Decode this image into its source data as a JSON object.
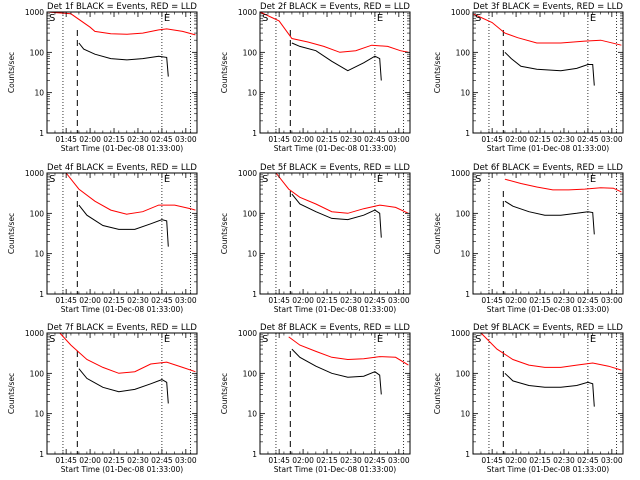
{
  "figure": {
    "xlabel": "Start Time (01-Dec-08 01:33:00)",
    "ylabel": "Counts/sec",
    "x_ticks": [
      "01:45",
      "02:00",
      "02:15",
      "02:30",
      "02:45",
      "03:00"
    ],
    "y_ticks": [
      "1",
      "10",
      "100",
      "1000"
    ],
    "marker_start": "S",
    "marker_end": "E",
    "series_colors": {
      "events": "#000000",
      "lld": "#ff0000"
    }
  },
  "chart_data": [
    {
      "type": "line",
      "title": "Det 1f BLACK = Events, RED = LLD",
      "xlabel": "Start Time (01-Dec-08 01:33:00)",
      "ylabel": "Counts/sec",
      "y_log": true,
      "ylim": [
        1,
        1000
      ],
      "x_ticks": [
        "01:45",
        "02:00",
        "02:15",
        "02:30",
        "02:45",
        "03:00"
      ],
      "x_tick_min": [
        12,
        27,
        42,
        57,
        72,
        87
      ],
      "xlim_min": [
        0,
        94
      ],
      "lines_dotted_min": [
        10,
        72,
        90
      ],
      "line_dashed_min": [
        19
      ],
      "series": [
        {
          "name": "LLD",
          "color": "#ff0000",
          "x_min": [
            0,
            15,
            27,
            30,
            40,
            50,
            60,
            70,
            75,
            85,
            93
          ],
          "values": [
            1000,
            900,
            420,
            330,
            290,
            280,
            300,
            360,
            380,
            330,
            270
          ]
        },
        {
          "name": "Events",
          "color": "#000000",
          "x_min": [
            20,
            23,
            30,
            40,
            50,
            60,
            70,
            75,
            76
          ],
          "values": [
            170,
            120,
            90,
            70,
            65,
            70,
            80,
            75,
            25
          ]
        }
      ]
    },
    {
      "type": "line",
      "title": "Det 2f BLACK = Events, RED = LLD",
      "xlabel": "Start Time (01-Dec-08 01:33:00)",
      "ylabel": "Counts/sec",
      "y_log": true,
      "ylim": [
        1,
        1000
      ],
      "x_ticks": [
        "01:45",
        "02:00",
        "02:15",
        "02:30",
        "02:45",
        "03:00"
      ],
      "x_tick_min": [
        12,
        27,
        42,
        57,
        72,
        87
      ],
      "xlim_min": [
        0,
        94
      ],
      "lines_dotted_min": [
        10,
        72,
        90
      ],
      "line_dashed_min": [
        19
      ],
      "series": [
        {
          "name": "LLD",
          "color": "#ff0000",
          "x_min": [
            0,
            12,
            20,
            30,
            40,
            50,
            60,
            70,
            80,
            88,
            93
          ],
          "values": [
            1000,
            600,
            220,
            180,
            140,
            100,
            110,
            150,
            140,
            110,
            100
          ]
        },
        {
          "name": "Events",
          "color": "#000000",
          "x_min": [
            20,
            25,
            35,
            45,
            55,
            65,
            72,
            75,
            76
          ],
          "values": [
            170,
            140,
            110,
            60,
            35,
            55,
            80,
            70,
            20
          ]
        }
      ]
    },
    {
      "type": "line",
      "title": "Det 3f BLACK = Events, RED = LLD",
      "xlabel": "Start Time (01-Dec-08 01:33:00)",
      "ylabel": "Counts/sec",
      "y_log": true,
      "ylim": [
        1,
        1000
      ],
      "x_ticks": [
        "01:45",
        "02:00",
        "02:15",
        "02:30",
        "02:45",
        "03:00"
      ],
      "x_tick_min": [
        12,
        27,
        42,
        57,
        72,
        87
      ],
      "xlim_min": [
        0,
        94
      ],
      "lines_dotted_min": [
        10,
        72,
        90
      ],
      "line_dashed_min": [
        19
      ],
      "series": [
        {
          "name": "LLD",
          "color": "#ff0000",
          "x_min": [
            0,
            12,
            20,
            28,
            40,
            55,
            70,
            80,
            93
          ],
          "values": [
            900,
            550,
            300,
            230,
            170,
            170,
            190,
            200,
            150
          ]
        },
        {
          "name": "Events",
          "color": "#000000",
          "x_min": [
            20,
            24,
            30,
            40,
            55,
            65,
            72,
            75,
            76
          ],
          "values": [
            100,
            70,
            45,
            38,
            35,
            40,
            50,
            50,
            15
          ]
        }
      ]
    },
    {
      "type": "line",
      "title": "Det 4f BLACK = Events, RED = LLD",
      "xlabel": "Start Time (01-Dec-08 01:33:00)",
      "ylabel": "Counts/sec",
      "y_log": true,
      "ylim": [
        1,
        1000
      ],
      "x_ticks": [
        "01:45",
        "02:00",
        "02:15",
        "02:30",
        "02:45",
        "03:00"
      ],
      "x_tick_min": [
        12,
        27,
        42,
        57,
        72,
        87
      ],
      "xlim_min": [
        0,
        94
      ],
      "lines_dotted_min": [
        10,
        72,
        90
      ],
      "line_dashed_min": [
        19
      ],
      "series": [
        {
          "name": "LLD",
          "color": "#ff0000",
          "x_min": [
            12,
            20,
            30,
            40,
            50,
            60,
            70,
            80,
            90,
            93
          ],
          "values": [
            1000,
            400,
            200,
            120,
            95,
            110,
            160,
            160,
            130,
            120
          ]
        },
        {
          "name": "Events",
          "color": "#000000",
          "x_min": [
            20,
            25,
            35,
            45,
            55,
            65,
            72,
            75,
            76
          ],
          "values": [
            160,
            90,
            50,
            40,
            40,
            55,
            70,
            65,
            15
          ]
        }
      ]
    },
    {
      "type": "line",
      "title": "Det 5f BLACK = Events, RED = LLD",
      "xlabel": "Start Time (01-Dec-08 01:33:00)",
      "ylabel": "Counts/sec",
      "y_log": true,
      "ylim": [
        1,
        1000
      ],
      "x_ticks": [
        "01:45",
        "02:00",
        "02:15",
        "02:30",
        "02:45",
        "03:00"
      ],
      "x_tick_min": [
        12,
        27,
        42,
        57,
        72,
        87
      ],
      "xlim_min": [
        0,
        94
      ],
      "lines_dotted_min": [
        10,
        72,
        90
      ],
      "line_dashed_min": [
        19
      ],
      "series": [
        {
          "name": "LLD",
          "color": "#ff0000",
          "x_min": [
            10,
            18,
            25,
            35,
            45,
            55,
            65,
            75,
            85,
            93
          ],
          "values": [
            1000,
            400,
            250,
            170,
            110,
            100,
            130,
            160,
            140,
            100
          ]
        },
        {
          "name": "Events",
          "color": "#000000",
          "x_min": [
            20,
            25,
            35,
            45,
            55,
            65,
            72,
            75,
            76
          ],
          "values": [
            300,
            170,
            110,
            75,
            70,
            90,
            120,
            100,
            25
          ]
        }
      ]
    },
    {
      "type": "line",
      "title": "Det 6f BLACK = Events, RED = LLD",
      "xlabel": "Start Time (01-Dec-08 01:33:00)",
      "ylabel": "Counts/sec",
      "y_log": true,
      "ylim": [
        1,
        1000
      ],
      "x_ticks": [
        "01:45",
        "02:00",
        "02:15",
        "02:30",
        "02:45",
        "03:00"
      ],
      "x_tick_min": [
        12,
        27,
        42,
        57,
        72,
        87
      ],
      "xlim_min": [
        0,
        94
      ],
      "lines_dotted_min": [
        10,
        72,
        90
      ],
      "line_dashed_min": [
        19
      ],
      "series": [
        {
          "name": "LLD",
          "color": "#ff0000",
          "x_min": [
            20,
            30,
            40,
            50,
            60,
            70,
            80,
            88,
            93
          ],
          "values": [
            700,
            550,
            450,
            380,
            380,
            400,
            430,
            420,
            340
          ]
        },
        {
          "name": "Events",
          "color": "#000000",
          "x_min": [
            20,
            25,
            35,
            45,
            55,
            65,
            72,
            75,
            76
          ],
          "values": [
            200,
            150,
            110,
            90,
            90,
            100,
            110,
            105,
            30
          ]
        }
      ]
    },
    {
      "type": "line",
      "title": "Det 7f BLACK = Events, RED = LLD",
      "xlabel": "Start Time (01-Dec-08 01:33:00)",
      "ylabel": "Counts/sec",
      "y_log": true,
      "ylim": [
        1,
        1000
      ],
      "x_ticks": [
        "01:45",
        "02:00",
        "02:15",
        "02:30",
        "02:45",
        "03:00"
      ],
      "x_tick_min": [
        12,
        27,
        42,
        57,
        72,
        87
      ],
      "xlim_min": [
        0,
        94
      ],
      "lines_dotted_min": [
        10,
        72,
        90
      ],
      "line_dashed_min": [
        19
      ],
      "series": [
        {
          "name": "LLD",
          "color": "#ff0000",
          "x_min": [
            8,
            15,
            25,
            35,
            45,
            55,
            65,
            75,
            85,
            93
          ],
          "values": [
            1000,
            500,
            220,
            140,
            100,
            110,
            170,
            190,
            140,
            110
          ]
        },
        {
          "name": "Events",
          "color": "#000000",
          "x_min": [
            20,
            25,
            35,
            45,
            55,
            65,
            72,
            75,
            76
          ],
          "values": [
            130,
            75,
            45,
            35,
            40,
            55,
            70,
            60,
            18
          ]
        }
      ]
    },
    {
      "type": "line",
      "title": "Det 8f BLACK = Events, RED = LLD",
      "xlabel": "Start Time (01-Dec-08 01:33:00)",
      "ylabel": "Counts/sec",
      "y_log": true,
      "ylim": [
        1,
        1000
      ],
      "x_ticks": [
        "01:45",
        "02:00",
        "02:15",
        "02:30",
        "02:45",
        "03:00"
      ],
      "x_tick_min": [
        12,
        27,
        42,
        57,
        72,
        87
      ],
      "xlim_min": [
        0,
        94
      ],
      "lines_dotted_min": [
        10,
        72,
        90
      ],
      "line_dashed_min": [
        19
      ],
      "series": [
        {
          "name": "LLD",
          "color": "#ff0000",
          "x_min": [
            18,
            25,
            35,
            45,
            55,
            65,
            75,
            85,
            93
          ],
          "values": [
            800,
            500,
            350,
            250,
            220,
            230,
            260,
            250,
            160
          ]
        },
        {
          "name": "Events",
          "color": "#000000",
          "x_min": [
            20,
            25,
            35,
            45,
            55,
            65,
            72,
            75,
            76
          ],
          "values": [
            400,
            250,
            150,
            100,
            80,
            85,
            110,
            90,
            30
          ]
        }
      ]
    },
    {
      "type": "line",
      "title": "Det 9f BLACK = Events, RED = LLD",
      "xlabel": "Start Time (01-Dec-08 01:33:00)",
      "ylabel": "Counts/sec",
      "y_log": true,
      "ylim": [
        1,
        1000
      ],
      "x_ticks": [
        "01:45",
        "02:00",
        "02:15",
        "02:30",
        "02:45",
        "03:00"
      ],
      "x_tick_min": [
        12,
        27,
        42,
        57,
        72,
        87
      ],
      "xlim_min": [
        0,
        94
      ],
      "lines_dotted_min": [
        10,
        72,
        90
      ],
      "line_dashed_min": [
        19
      ],
      "series": [
        {
          "name": "LLD",
          "color": "#ff0000",
          "x_min": [
            5,
            15,
            25,
            35,
            45,
            55,
            65,
            75,
            85,
            93
          ],
          "values": [
            1000,
            400,
            220,
            160,
            140,
            140,
            160,
            180,
            150,
            120
          ]
        },
        {
          "name": "Events",
          "color": "#000000",
          "x_min": [
            20,
            25,
            35,
            45,
            55,
            65,
            72,
            75,
            76
          ],
          "values": [
            100,
            65,
            50,
            45,
            45,
            50,
            60,
            55,
            15
          ]
        }
      ]
    }
  ]
}
